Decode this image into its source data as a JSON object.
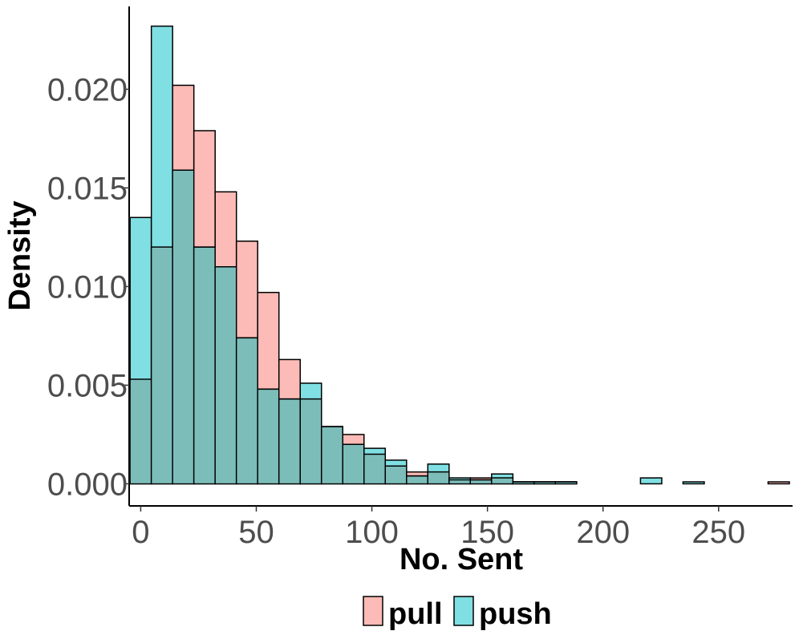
{
  "chart_data": {
    "type": "bar",
    "xlabel": "No. Sent",
    "ylabel": "Density",
    "xlim": [
      -5,
      282
    ],
    "ylim": [
      -0.00112,
      0.0242
    ],
    "x_ticks": [
      0,
      50,
      100,
      150,
      200,
      250
    ],
    "y_ticks": [
      0.0,
      0.005,
      0.01,
      0.015,
      0.02
    ],
    "y_tick_labels": [
      "0.000",
      "0.005",
      "0.010",
      "0.015",
      "0.020"
    ],
    "bin_width": 9.2,
    "bin_start": -4.6,
    "series": [
      {
        "name": "pull",
        "color": "#F8766D",
        "values": [
          0.0053,
          0.012,
          0.0202,
          0.0179,
          0.0148,
          0.0123,
          0.0097,
          0.0063,
          0.0043,
          0.0029,
          0.0025,
          0.0015,
          0.0009,
          0.0006,
          0.0006,
          0.0002,
          0.0003,
          0.0003,
          0.0001,
          0.0001,
          0.0001,
          0.0,
          0.0,
          0.0,
          0.0,
          0.0,
          0.0,
          0.0,
          0.0,
          0.0,
          0.0001
        ]
      },
      {
        "name": "push",
        "color": "#00BFC4",
        "values": [
          0.0135,
          0.0232,
          0.0159,
          0.012,
          0.011,
          0.0074,
          0.0048,
          0.0043,
          0.0051,
          0.0029,
          0.002,
          0.0018,
          0.0012,
          0.0004,
          0.001,
          0.0003,
          0.0002,
          0.0005,
          0.0001,
          0.0001,
          0.0001,
          0.0,
          0.0,
          0.0,
          0.0003,
          0.0,
          0.0001,
          0.0,
          0.0,
          0.0,
          0.0
        ]
      }
    ],
    "overlap_color": "#7CBDBA",
    "legend_position": "bottom",
    "grid": false
  }
}
